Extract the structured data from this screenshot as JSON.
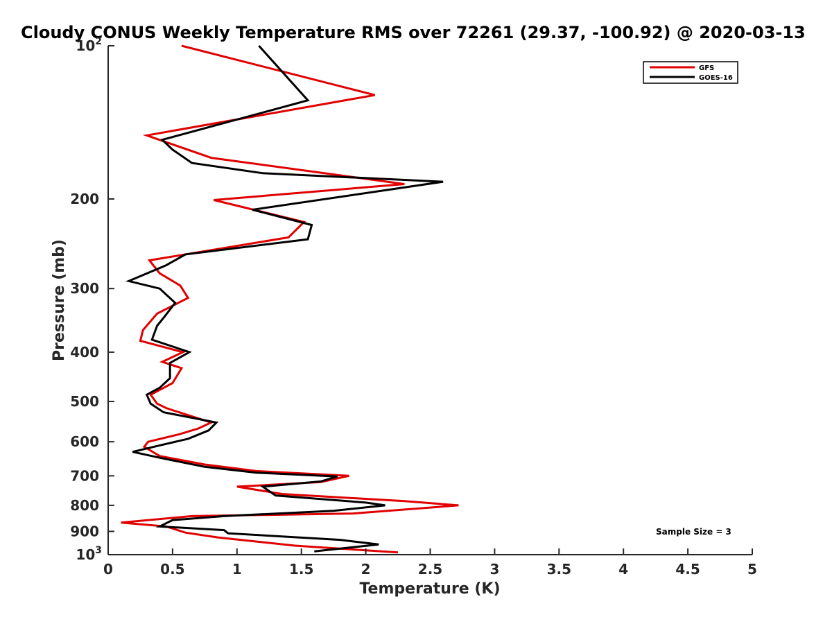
{
  "chart_data": {
    "type": "line",
    "title": "Cloudy CONUS Weekly Temperature RMS over 72261 (29.37, -100.92) @ 2020-03-13",
    "xlabel": "Temperature (K)",
    "ylabel": "Pressure (mb)",
    "xlim": [
      0,
      5
    ],
    "ylim": [
      100,
      1000
    ],
    "y_scale": "log",
    "y_reversed": true,
    "x_ticks": [
      "0",
      "0.5",
      "1",
      "1.5",
      "2",
      "2.5",
      "3",
      "3.5",
      "4",
      "4.5",
      "5"
    ],
    "y_ticks": [
      {
        "value": 100,
        "label": "10",
        "sup": "2"
      },
      {
        "value": 200,
        "label": "200",
        "sup": ""
      },
      {
        "value": 300,
        "label": "300",
        "sup": ""
      },
      {
        "value": 400,
        "label": "400",
        "sup": ""
      },
      {
        "value": 500,
        "label": "500",
        "sup": ""
      },
      {
        "value": 600,
        "label": "600",
        "sup": ""
      },
      {
        "value": 700,
        "label": "700",
        "sup": ""
      },
      {
        "value": 800,
        "label": "800",
        "sup": ""
      },
      {
        "value": 900,
        "label": "900",
        "sup": ""
      },
      {
        "value": 1000,
        "label": "10",
        "sup": "3"
      }
    ],
    "grid": false,
    "legend_position": "top-right",
    "annotation": "Sample Size = 3",
    "series": [
      {
        "name": "GFS",
        "color": "#e00000",
        "points": [
          [
            0.57,
            100
          ],
          [
            2.07,
            125
          ],
          [
            0.3,
            150
          ],
          [
            0.8,
            166
          ],
          [
            2.3,
            187
          ],
          [
            0.82,
            201
          ],
          [
            1.52,
            222
          ],
          [
            1.4,
            238
          ],
          [
            0.32,
            264
          ],
          [
            0.4,
            280
          ],
          [
            0.56,
            296
          ],
          [
            0.62,
            313
          ],
          [
            0.38,
            336
          ],
          [
            0.27,
            362
          ],
          [
            0.25,
            380
          ],
          [
            0.58,
            400
          ],
          [
            0.42,
            418
          ],
          [
            0.57,
            430
          ],
          [
            0.5,
            460
          ],
          [
            0.33,
            485
          ],
          [
            0.38,
            505
          ],
          [
            0.45,
            515
          ],
          [
            0.6,
            530
          ],
          [
            0.8,
            550
          ],
          [
            0.7,
            565
          ],
          [
            0.55,
            580
          ],
          [
            0.31,
            600
          ],
          [
            0.28,
            614
          ],
          [
            0.4,
            640
          ],
          [
            0.75,
            665
          ],
          [
            1.15,
            685
          ],
          [
            1.87,
            700
          ],
          [
            1.65,
            720
          ],
          [
            1.0,
            735
          ],
          [
            1.35,
            760
          ],
          [
            2.3,
            785
          ],
          [
            2.72,
            800
          ],
          [
            1.9,
            830
          ],
          [
            0.65,
            840
          ],
          [
            0.1,
            865
          ],
          [
            0.45,
            880
          ],
          [
            0.6,
            905
          ],
          [
            0.85,
            925
          ],
          [
            1.45,
            960
          ],
          [
            2.25,
            990
          ]
        ]
      },
      {
        "name": "GOES-16",
        "color": "#000000",
        "points": [
          [
            1.17,
            100
          ],
          [
            1.55,
            128
          ],
          [
            0.42,
            153
          ],
          [
            0.5,
            160
          ],
          [
            0.65,
            170
          ],
          [
            1.2,
            178
          ],
          [
            2.6,
            185
          ],
          [
            1.12,
            210
          ],
          [
            1.58,
            225
          ],
          [
            1.55,
            240
          ],
          [
            0.6,
            257
          ],
          [
            0.45,
            270
          ],
          [
            0.16,
            290
          ],
          [
            0.4,
            300
          ],
          [
            0.52,
            320
          ],
          [
            0.44,
            340
          ],
          [
            0.38,
            355
          ],
          [
            0.34,
            378
          ],
          [
            0.63,
            400
          ],
          [
            0.48,
            420
          ],
          [
            0.48,
            450
          ],
          [
            0.4,
            470
          ],
          [
            0.3,
            485
          ],
          [
            0.33,
            505
          ],
          [
            0.43,
            525
          ],
          [
            0.84,
            550
          ],
          [
            0.78,
            570
          ],
          [
            0.62,
            592
          ],
          [
            0.4,
            610
          ],
          [
            0.19,
            628
          ],
          [
            0.4,
            645
          ],
          [
            0.75,
            672
          ],
          [
            1.15,
            690
          ],
          [
            1.78,
            702
          ],
          [
            1.65,
            718
          ],
          [
            1.2,
            735
          ],
          [
            1.3,
            765
          ],
          [
            2.0,
            790
          ],
          [
            2.15,
            800
          ],
          [
            1.75,
            820
          ],
          [
            0.9,
            840
          ],
          [
            0.5,
            855
          ],
          [
            0.4,
            880
          ],
          [
            0.9,
            895
          ],
          [
            0.93,
            908
          ],
          [
            1.8,
            935
          ],
          [
            2.1,
            955
          ],
          [
            1.6,
            985
          ]
        ]
      }
    ]
  }
}
